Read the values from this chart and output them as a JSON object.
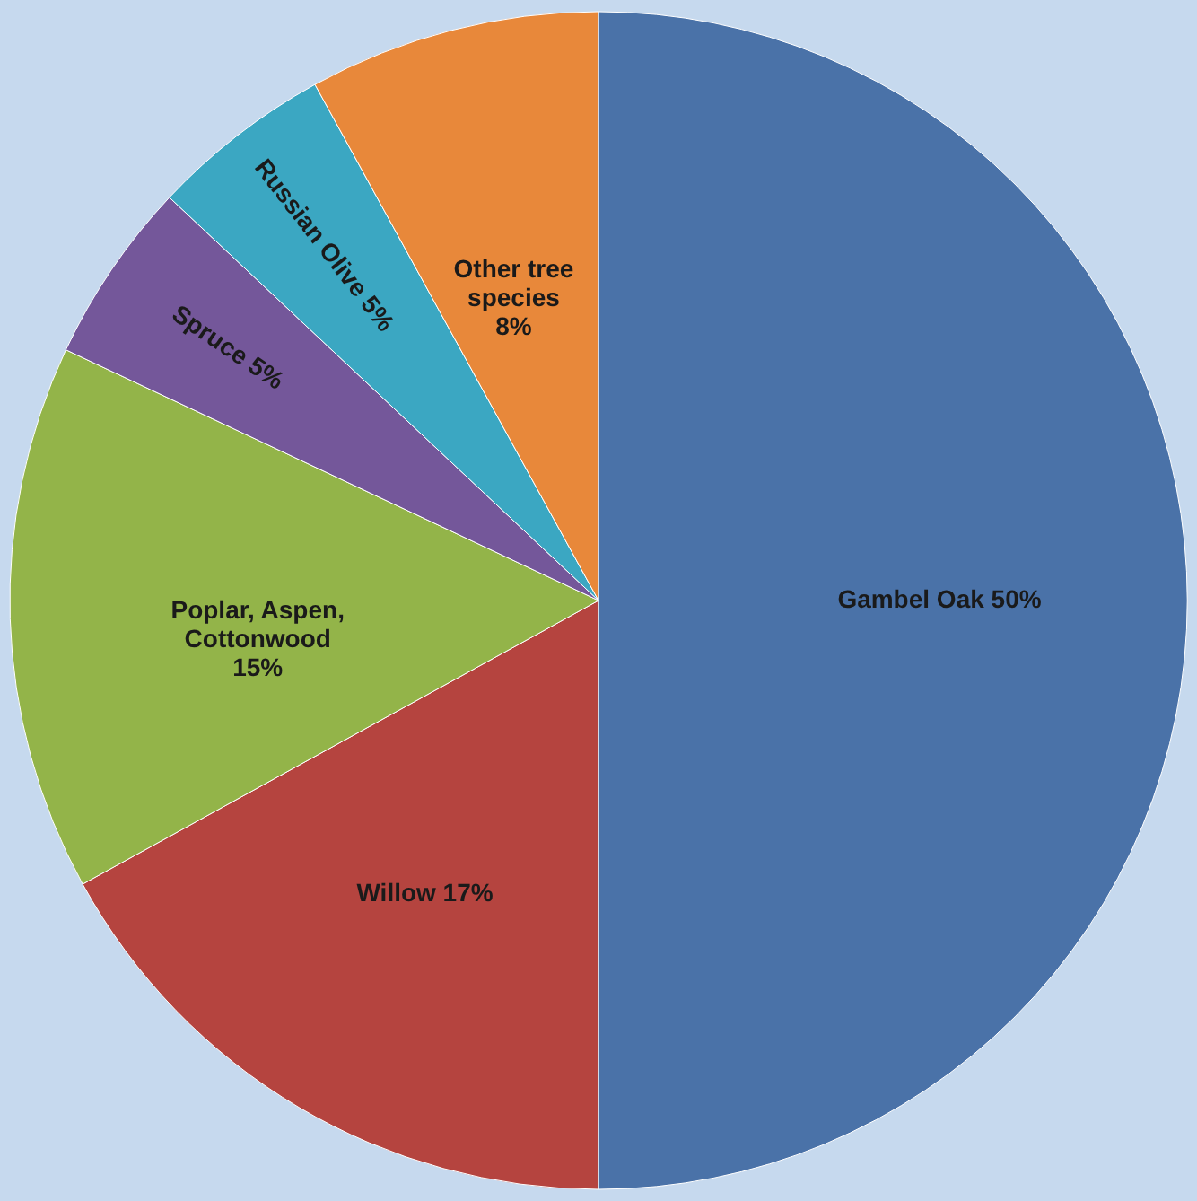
{
  "chart_data": {
    "type": "pie",
    "categories": [
      "Gambel Oak",
      "Willow",
      "Poplar, Aspen, Cottonwood",
      "Spruce",
      "Russian Olive",
      "Other tree species"
    ],
    "values": [
      50,
      17,
      15,
      5,
      5,
      8
    ],
    "value_labels": [
      "50%",
      "17%",
      "15%",
      "5%",
      "5%",
      "8%"
    ],
    "colors": [
      "#4a72a8",
      "#b5443f",
      "#93b449",
      "#74579a",
      "#3ba7c2",
      "#e8883a"
    ]
  }
}
